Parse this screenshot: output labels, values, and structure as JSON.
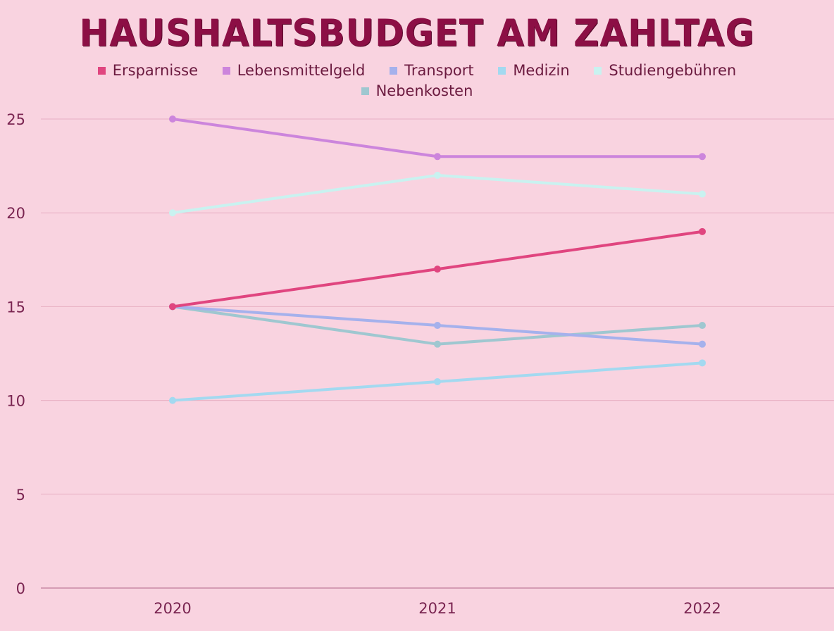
{
  "chart_data": {
    "type": "line",
    "title": "HAUSHALTSBUDGET AM ZAHLTAG",
    "xlabel": "",
    "ylabel": "",
    "categories": [
      "2020",
      "2021",
      "2022"
    ],
    "ylim": [
      0,
      25
    ],
    "yticks": [
      "0",
      "5",
      "10",
      "15",
      "20",
      "25"
    ],
    "grid": true,
    "legend_position": "top",
    "series": [
      {
        "name": "Ersparnisse",
        "color": "#e0457f",
        "values": [
          15,
          17,
          19
        ]
      },
      {
        "name": "Lebensmittelgeld",
        "color": "#cc85dc",
        "values": [
          25,
          23,
          23
        ]
      },
      {
        "name": "Transport",
        "color": "#a5b1ec",
        "values": [
          15,
          14,
          13
        ]
      },
      {
        "name": "Medizin",
        "color": "#a3d9f0",
        "values": [
          10,
          11,
          12
        ]
      },
      {
        "name": "Studiengebühren",
        "color": "#c9f2f0",
        "values": [
          20,
          22,
          21
        ]
      },
      {
        "name": "Nebenkosten",
        "color": "#9fc7d0",
        "values": [
          15,
          13,
          14
        ]
      }
    ]
  },
  "colors": {
    "background": "#f9d3e0",
    "title": "#8c0f45",
    "text": "#6b1a3f",
    "grid": "#e3a6bd"
  }
}
